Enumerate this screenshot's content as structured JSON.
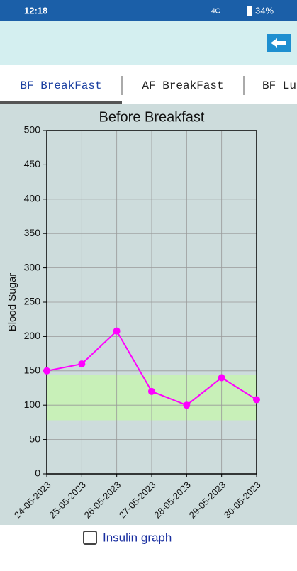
{
  "status": {
    "time": "12:18",
    "network": "4G",
    "battery": "34%"
  },
  "tabs": [
    "BF BreakFast",
    "AF BreakFast",
    "BF Lu"
  ],
  "chart_data": {
    "type": "line",
    "title": "Before Breakfast",
    "y_label": "Blood Sugar",
    "categories": [
      "24-05-2023",
      "25-05-2023",
      "26-05-2023",
      "27-05-2023",
      "28-05-2023",
      "29-05-2023",
      "30-05-2023"
    ],
    "series": [
      {
        "name": "Blood Sugar",
        "color": "#ff00ff",
        "values": [
          150,
          160,
          208,
          120,
          100,
          140,
          108
        ]
      }
    ],
    "target_range": [
      78,
      144
    ],
    "target_color": "#c8f0b8",
    "ylim": [
      0,
      500
    ],
    "yticks": [
      0,
      50,
      100,
      150,
      200,
      250,
      300,
      350,
      400,
      450,
      500
    ],
    "grid": true
  },
  "checkbox": {
    "label": "Insulin graph"
  }
}
